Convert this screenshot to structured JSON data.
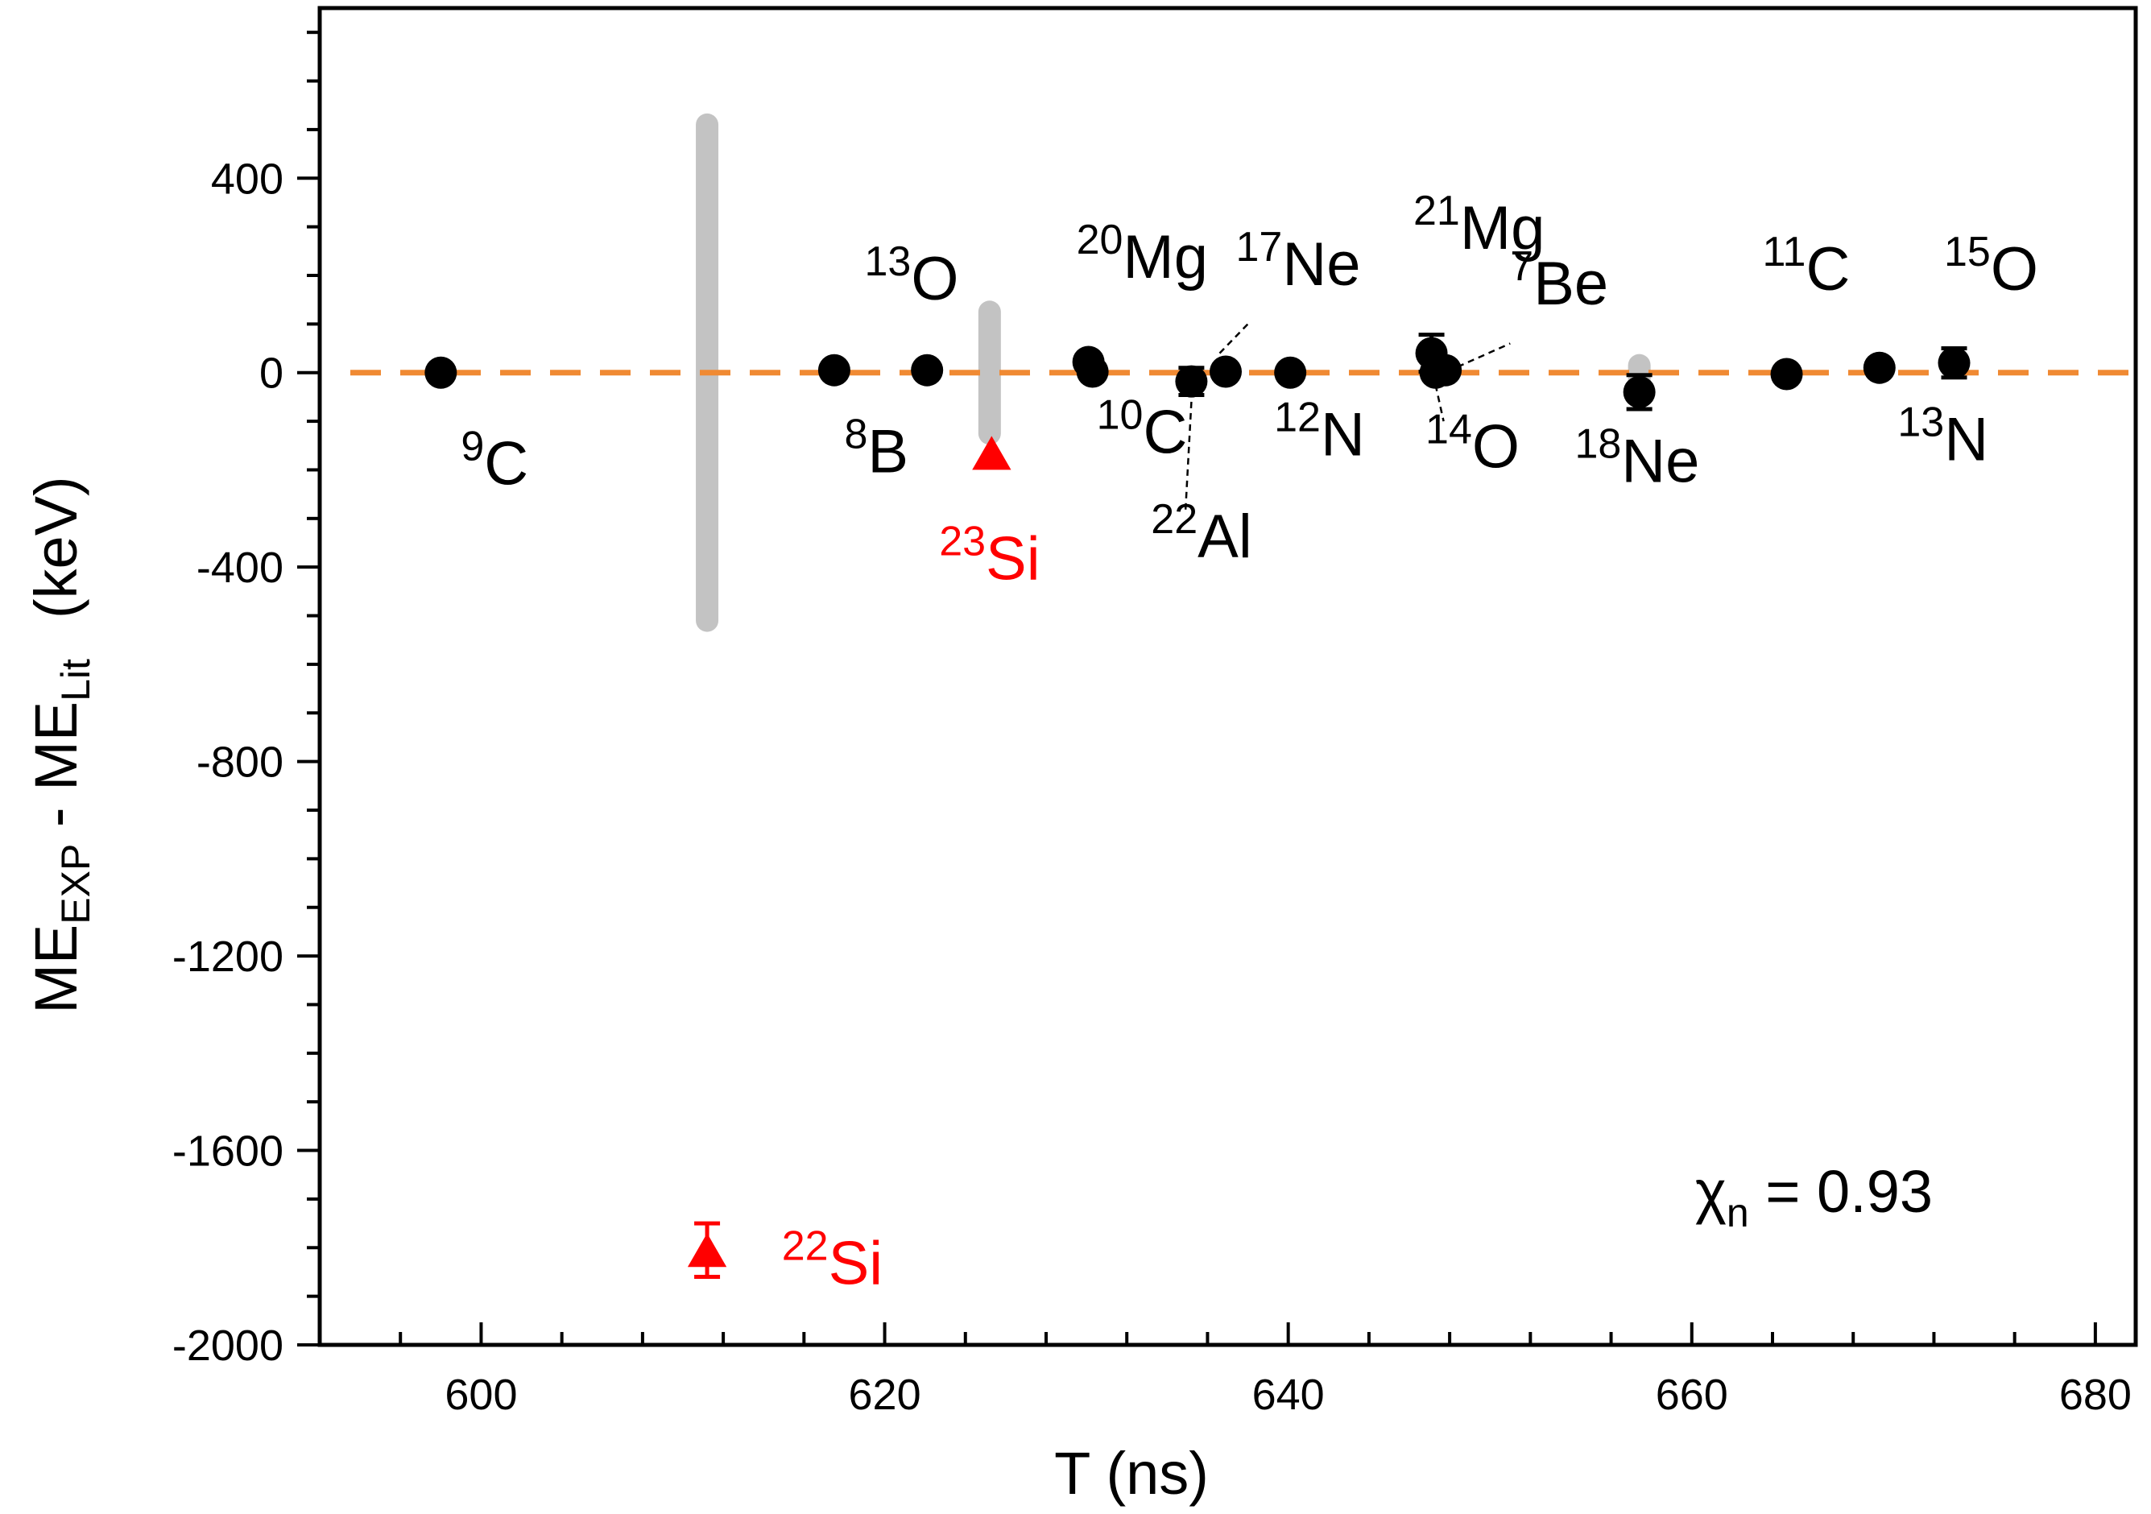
{
  "chart_data": {
    "type": "scatter",
    "xlabel": "T (ns)",
    "ylabel": {
      "main1": "ME",
      "sub1": "EXP",
      "sep": " - ",
      "main2": "ME",
      "sub2": "Lit",
      "unit": "(keV)"
    },
    "xlim": [
      592,
      682
    ],
    "ylim": [
      -2000,
      750
    ],
    "xticks": [
      600,
      620,
      640,
      660,
      680
    ],
    "yticks": [
      400,
      0,
      -400,
      -800,
      -1200,
      -1600,
      -2000
    ],
    "reference_line": {
      "y": 0,
      "style": "dashed",
      "color": "#f08a33"
    },
    "annotation": {
      "symbol": "χ",
      "sub": "n",
      "text": " = 0.93"
    },
    "colors": {
      "axis": "#000000",
      "black_series": "#000000",
      "red_series": "#ff0000",
      "gray_band": "#c3c3c3"
    },
    "gray_bands": [
      {
        "x": 611.2,
        "y_low": -510,
        "y_high": 510
      },
      {
        "x": 625.2,
        "y_low": -125,
        "y_high": 125
      },
      {
        "x": 657.4,
        "y_low": -20,
        "y_high": 15
      }
    ],
    "series": [
      {
        "name": "",
        "marker": "circle",
        "color": "#000000",
        "points": [
          {
            "x": 598.0,
            "y": 0,
            "err": 0
          },
          {
            "x": 617.5,
            "y": 5,
            "err": 0
          },
          {
            "x": 622.1,
            "y": 5,
            "err": 0
          },
          {
            "x": 630.1,
            "y": 22,
            "err": 0
          },
          {
            "x": 630.3,
            "y": 2,
            "err": 0
          },
          {
            "x": 635.2,
            "y": -18,
            "err": 28
          },
          {
            "x": 636.9,
            "y": 2,
            "err": 0
          },
          {
            "x": 640.1,
            "y": 0,
            "err": 0
          },
          {
            "x": 647.1,
            "y": 40,
            "err": 38
          },
          {
            "x": 647.3,
            "y": 0,
            "err": 0
          },
          {
            "x": 647.8,
            "y": 5,
            "err": 15
          },
          {
            "x": 657.4,
            "y": -40,
            "err": 35
          },
          {
            "x": 664.7,
            "y": -3,
            "err": 0
          },
          {
            "x": 669.3,
            "y": 10,
            "err": 15
          },
          {
            "x": 673.0,
            "y": 20,
            "err": 30
          }
        ]
      },
      {
        "name": "",
        "marker": "triangle",
        "color": "#ff0000",
        "points": [
          {
            "x": 625.3,
            "y": -165,
            "err": 0
          },
          {
            "x": 611.2,
            "y": -1805,
            "err": 55
          }
        ]
      }
    ],
    "labels": [
      {
        "id": "9C",
        "mass": "9",
        "el": "C",
        "color": "black",
        "x": 599.0,
        "y": -230
      },
      {
        "id": "8B",
        "mass": "8",
        "el": "B",
        "color": "black",
        "x": 618.0,
        "y": -205
      },
      {
        "id": "13O",
        "mass": "13",
        "el": "O",
        "color": "black",
        "x": 619.0,
        "y": 150
      },
      {
        "id": "20Mg",
        "mass": "20",
        "el": "Mg",
        "color": "black",
        "x": 629.5,
        "y": 195
      },
      {
        "id": "10C",
        "mass": "10",
        "el": "C",
        "color": "black",
        "x": 630.5,
        "y": -165
      },
      {
        "id": "17Ne",
        "mass": "17",
        "el": "Ne",
        "color": "black",
        "x": 637.4,
        "y": 180
      },
      {
        "id": "22Al",
        "mass": "22",
        "el": "Al",
        "color": "black",
        "x": 633.2,
        "y": -380
      },
      {
        "id": "12N",
        "mass": "12",
        "el": "N",
        "color": "black",
        "x": 639.3,
        "y": -170
      },
      {
        "id": "21Mg",
        "mass": "21",
        "el": "Mg",
        "color": "black",
        "x": 646.2,
        "y": 255
      },
      {
        "id": "7Be",
        "mass": "7",
        "el": "Be",
        "color": "black",
        "x": 651.0,
        "y": 140
      },
      {
        "id": "14O",
        "mass": "14",
        "el": "O",
        "color": "black",
        "x": 646.8,
        "y": -195
      },
      {
        "id": "18Ne",
        "mass": "18",
        "el": "Ne",
        "color": "black",
        "x": 654.2,
        "y": -225
      },
      {
        "id": "11C",
        "mass": "11",
        "el": "C",
        "color": "black",
        "x": 663.5,
        "y": 170
      },
      {
        "id": "13N",
        "mass": "13",
        "el": "N",
        "color": "black",
        "x": 670.2,
        "y": -180
      },
      {
        "id": "15O",
        "mass": "15",
        "el": "O",
        "color": "black",
        "x": 672.5,
        "y": 170
      },
      {
        "id": "23Si",
        "mass": "23",
        "el": "Si",
        "color": "red",
        "x": 622.7,
        "y": -425
      },
      {
        "id": "22Si",
        "mass": "22",
        "el": "Si",
        "color": "red",
        "x": 614.9,
        "y": -1875
      }
    ],
    "leader_lines": [
      {
        "x1": 636.6,
        "y1": 40,
        "x2": 638.0,
        "y2": 100
      },
      {
        "x1": 635.2,
        "y1": -60,
        "x2": 634.9,
        "y2": -290
      },
      {
        "x1": 648.4,
        "y1": 12,
        "x2": 651.0,
        "y2": 60
      },
      {
        "x1": 647.3,
        "y1": -25,
        "x2": 647.7,
        "y2": -100
      }
    ]
  }
}
